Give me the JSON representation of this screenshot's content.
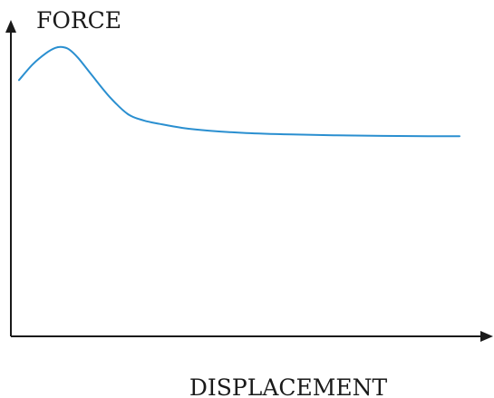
{
  "chart_data": {
    "type": "line",
    "xlabel": "DISPLACEMENT",
    "ylabel": "FORCE",
    "x_ticks": "none",
    "y_ticks": "none",
    "grid": false,
    "legend": "none",
    "xlim": [
      0,
      100
    ],
    "ylim": [
      0,
      100
    ],
    "series": [
      {
        "color": "#2a8fd0",
        "x": [
          0,
          3,
          6,
          8,
          9.5,
          11,
          13,
          16,
          20,
          24,
          27.5,
          31,
          36,
          42,
          50,
          60,
          70,
          80,
          90,
          97
        ],
        "y": [
          90,
          95.5,
          99.5,
          101.3,
          101.6,
          100.8,
          97.8,
          91.8,
          84,
          78,
          75.8,
          74.6,
          73.2,
          72.2,
          71.4,
          70.9,
          70.6,
          70.4,
          70.3,
          70.3
        ]
      }
    ],
    "axis_color": "#1a1a1a"
  }
}
